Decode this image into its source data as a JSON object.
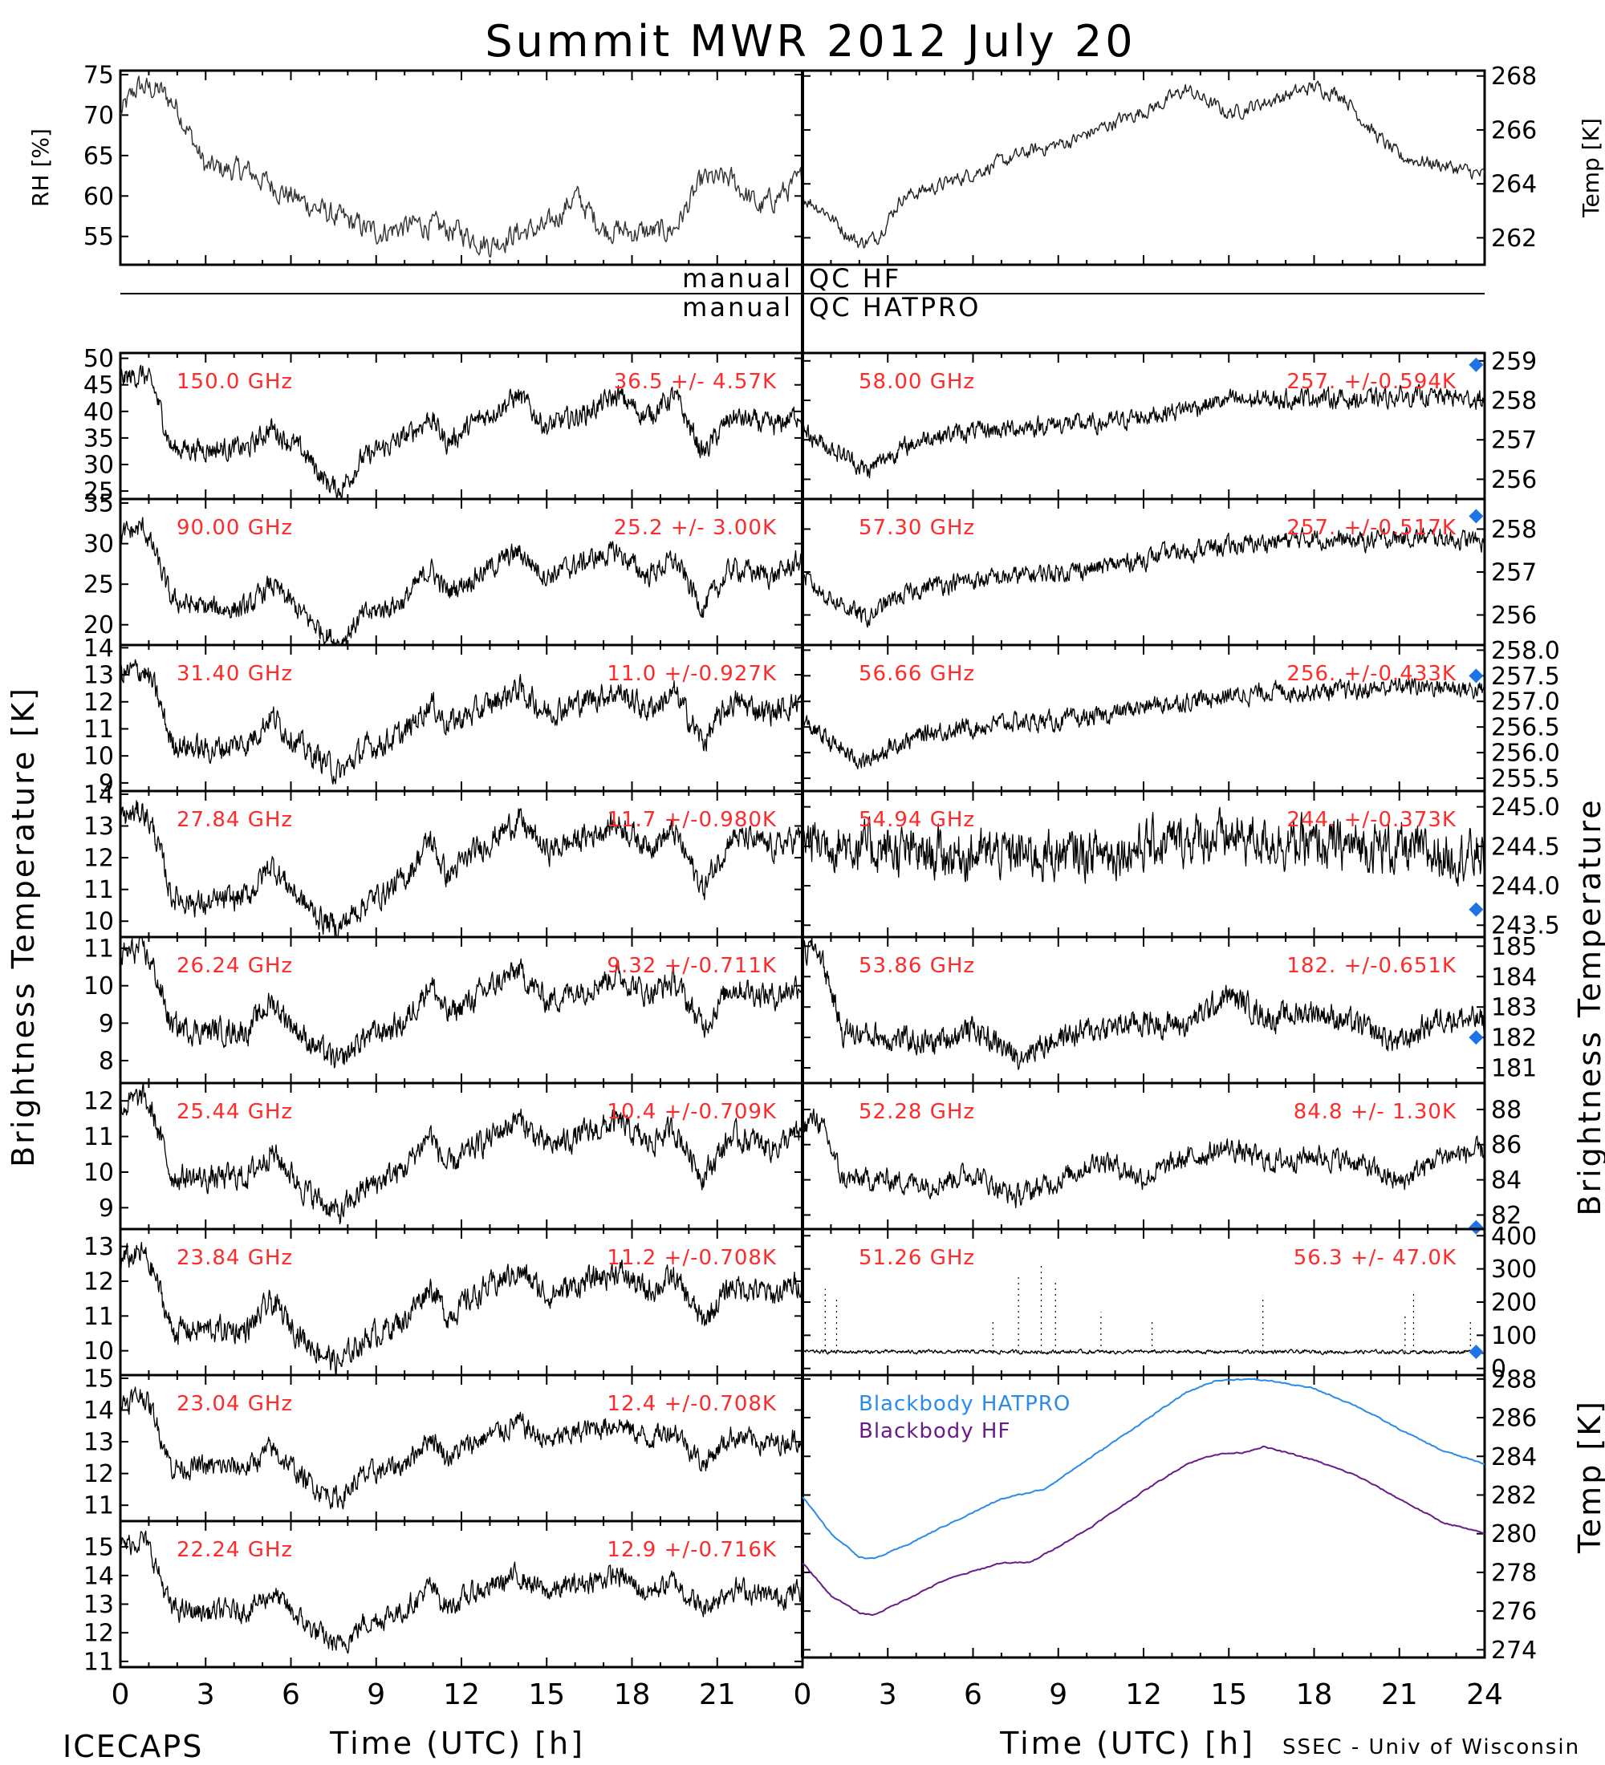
{
  "title": "Summit MWR 2012 July 20",
  "footer": {
    "left": "ICECAPS",
    "right": "SSEC - Univ of Wisconsin"
  },
  "colors": {
    "trace": "#000000",
    "label_red": "#ff2a2a",
    "sounding_blue": "#1e73e6",
    "hatpro_blue": "#2b8be8",
    "hf_purple": "#6a1b8a",
    "axis": "#000000"
  },
  "qc_labels": {
    "hf_left": "manual",
    "hf_right": "QC HF",
    "hatpro_left": "manual",
    "hatpro_right": "QC HATPRO"
  },
  "side_labels": {
    "left_bt": "Brightness Temperature [K]",
    "right_bt": "Brightness Temperature",
    "right_temp": "Temp [K]"
  },
  "x_axis": {
    "label": "Time (UTC) [h]",
    "ticks_left": [
      "0",
      "3",
      "6",
      "9",
      "12",
      "15",
      "18",
      "21"
    ],
    "ticks_right": [
      "0",
      "3",
      "6",
      "9",
      "12",
      "15",
      "18",
      "21",
      "24"
    ],
    "range": [
      0,
      24
    ]
  },
  "chart_data": [
    {
      "type": "line",
      "panel": "rh",
      "ylabel": "RH [%]",
      "ylim": [
        51.5,
        75.5
      ],
      "yticks": [
        55,
        60,
        65,
        70,
        75
      ],
      "x": [
        0,
        0.6,
        1.4,
        2.0,
        3.0,
        4.5,
        6.0,
        7.5,
        9.0,
        10.5,
        12.0,
        13.0,
        14.0,
        15.0,
        16.0,
        17.0,
        18.0,
        19.0,
        19.5,
        20.5,
        21.5,
        22.5,
        24.0
      ],
      "values": [
        70,
        73.5,
        73,
        71,
        63.5,
        63,
        60,
        57.5,
        55.5,
        56.5,
        55.5,
        54,
        55.5,
        56,
        60,
        56,
        55.5,
        55.5,
        56,
        62,
        62,
        58.5,
        62
      ]
    },
    {
      "type": "line",
      "panel": "temp",
      "ylabel": "Temp [K]",
      "ylim": [
        261,
        268.2
      ],
      "yticks": [
        262,
        264,
        266,
        268
      ],
      "x": [
        0,
        0.8,
        1.5,
        2.0,
        2.6,
        3.5,
        5.0,
        6.5,
        8.0,
        9.5,
        11.0,
        12.5,
        13.5,
        15.0,
        16.5,
        18.0,
        19.0,
        20.0,
        21.0,
        22.5,
        24.0
      ],
      "values": [
        263.5,
        263.0,
        262.2,
        261.8,
        262.0,
        263.5,
        264.0,
        264.6,
        265.2,
        265.6,
        266.3,
        266.9,
        267.5,
        266.6,
        267.1,
        267.6,
        267.3,
        266.0,
        265.0,
        264.7,
        264.3
      ]
    },
    {
      "type": "line",
      "panel": "left",
      "label": "150.0 GHz",
      "stat": "36.5 +/- 4.57K",
      "ylim": [
        23.5,
        51
      ],
      "yticks": [
        25,
        30,
        35,
        40,
        45,
        50
      ],
      "x": [
        0,
        0.8,
        1.2,
        1.8,
        3.0,
        4.5,
        5.3,
        6.5,
        7.2,
        7.7,
        8.5,
        10.0,
        10.9,
        11.5,
        12.5,
        14.0,
        15.0,
        16.5,
        17.5,
        18.5,
        19.5,
        20.5,
        21.5,
        23.0,
        24.0
      ],
      "values": [
        46,
        47,
        44,
        33,
        33,
        33,
        37,
        32,
        27,
        25,
        31,
        35,
        39,
        34,
        38,
        43,
        37,
        40,
        43,
        39,
        43,
        32,
        39,
        37,
        40
      ],
      "noise": 0.06,
      "sounding": null
    },
    {
      "type": "line",
      "panel": "left",
      "label": "90.00 GHz",
      "stat": "25.2 +/- 3.00K",
      "ylim": [
        17.5,
        35.5
      ],
      "yticks": [
        20,
        25,
        30,
        35
      ],
      "x": [
        0,
        0.8,
        1.2,
        1.8,
        3.0,
        4.5,
        5.3,
        6.5,
        7.2,
        7.7,
        8.5,
        10.0,
        10.9,
        11.5,
        12.5,
        14.0,
        15.0,
        16.5,
        17.5,
        18.5,
        19.5,
        20.5,
        21.5,
        23.0,
        24.0
      ],
      "values": [
        31,
        32,
        29,
        23,
        22,
        22,
        25,
        21,
        19,
        17.8,
        21,
        23,
        27,
        24,
        26,
        29,
        26,
        28,
        29,
        26,
        28,
        22,
        27,
        26,
        28
      ],
      "noise": 0.06,
      "sounding": null
    },
    {
      "type": "line",
      "panel": "left",
      "label": "31.40 GHz",
      "stat": "11.0 +/-0.927K",
      "ylim": [
        8.7,
        14.1
      ],
      "yticks": [
        9,
        10,
        11,
        12,
        13,
        14
      ],
      "x": [
        0,
        0.8,
        1.2,
        1.8,
        3.0,
        4.5,
        5.3,
        6.5,
        7.2,
        7.7,
        8.5,
        10.0,
        10.9,
        11.5,
        12.5,
        14.0,
        15.0,
        16.5,
        17.5,
        18.5,
        19.5,
        20.5,
        21.5,
        23.0,
        24.0
      ],
      "values": [
        13,
        13.2,
        12.5,
        10.5,
        10.2,
        10.5,
        11.5,
        10.2,
        9.8,
        9.3,
        10.2,
        10.8,
        12,
        11.2,
        11.6,
        12.5,
        11.6,
        12.1,
        12.4,
        11.7,
        12.3,
        10.5,
        12.0,
        11.6,
        12.1
      ],
      "noise": 0.07,
      "sounding": null
    },
    {
      "type": "line",
      "panel": "left",
      "label": "27.84 GHz",
      "stat": "11.7 +/-0.980K",
      "ylim": [
        9.5,
        14.1
      ],
      "yticks": [
        10,
        11,
        12,
        13,
        14
      ],
      "x": [
        0,
        0.8,
        1.2,
        1.8,
        3.0,
        4.5,
        5.3,
        6.5,
        7.2,
        7.7,
        8.5,
        10.0,
        10.9,
        11.5,
        12.5,
        14.0,
        15.0,
        16.5,
        17.5,
        18.5,
        19.5,
        20.5,
        21.5,
        23.0,
        24.0
      ],
      "values": [
        13.2,
        13.5,
        12.8,
        10.8,
        10.5,
        10.8,
        11.8,
        10.5,
        10.0,
        9.8,
        10.5,
        11.3,
        12.6,
        11.4,
        12.2,
        13.2,
        12.2,
        12.7,
        13.1,
        12.4,
        12.8,
        11.0,
        12.7,
        12.3,
        12.7
      ],
      "noise": 0.07,
      "sounding": null
    },
    {
      "type": "line",
      "panel": "left",
      "label": "26.24 GHz",
      "stat": "9.32 +/-0.711K",
      "ylim": [
        7.4,
        11.3
      ],
      "yticks": [
        8,
        9,
        10,
        11
      ],
      "x": [
        0,
        0.8,
        1.2,
        1.8,
        3.0,
        4.5,
        5.3,
        6.5,
        7.2,
        7.7,
        8.5,
        10.0,
        10.9,
        11.5,
        12.5,
        14.0,
        15.0,
        16.5,
        17.5,
        18.5,
        19.5,
        20.5,
        21.5,
        23.0,
        24.0
      ],
      "values": [
        10.8,
        11.0,
        10.4,
        8.9,
        8.8,
        8.8,
        9.6,
        8.6,
        8.2,
        7.9,
        8.6,
        9.0,
        10.1,
        9.2,
        9.7,
        10.4,
        9.6,
        10.0,
        10.3,
        9.8,
        10.1,
        8.9,
        10.0,
        9.7,
        10.1
      ],
      "noise": 0.07,
      "sounding": null
    },
    {
      "type": "line",
      "panel": "left",
      "label": "25.44 GHz",
      "stat": "10.4 +/-0.709K",
      "ylim": [
        8.4,
        12.5
      ],
      "yticks": [
        9,
        10,
        11,
        12
      ],
      "x": [
        0,
        0.8,
        1.2,
        1.8,
        3.0,
        4.5,
        5.3,
        6.5,
        7.2,
        7.7,
        8.5,
        10.0,
        10.9,
        11.5,
        12.5,
        14.0,
        15.0,
        16.5,
        17.5,
        18.5,
        19.5,
        20.5,
        21.5,
        23.0,
        24.0
      ],
      "values": [
        11.8,
        12.1,
        11.5,
        9.9,
        9.8,
        9.9,
        10.6,
        9.5,
        9.1,
        8.8,
        9.5,
        10.1,
        11.1,
        10.1,
        10.7,
        11.5,
        10.7,
        11.1,
        11.4,
        10.8,
        11.2,
        9.9,
        11.0,
        10.7,
        11.1
      ],
      "noise": 0.07,
      "sounding": null
    },
    {
      "type": "line",
      "panel": "left",
      "label": "23.84 GHz",
      "stat": "11.2 +/-0.708K",
      "ylim": [
        9.3,
        13.5
      ],
      "yticks": [
        10,
        11,
        12,
        13
      ],
      "x": [
        0,
        0.8,
        1.2,
        1.8,
        3.0,
        4.5,
        5.3,
        6.5,
        7.2,
        7.7,
        8.5,
        10.0,
        10.9,
        11.5,
        12.5,
        14.0,
        15.0,
        16.5,
        17.5,
        18.5,
        19.5,
        20.5,
        21.5,
        23.0,
        24.0
      ],
      "values": [
        12.6,
        12.8,
        12.2,
        10.6,
        10.6,
        10.6,
        11.4,
        10.3,
        9.9,
        9.6,
        10.3,
        10.9,
        11.9,
        11.0,
        11.6,
        12.3,
        11.6,
        12.0,
        12.3,
        11.7,
        12.1,
        10.8,
        11.9,
        11.6,
        12.0
      ],
      "noise": 0.07,
      "sounding": null
    },
    {
      "type": "line",
      "panel": "left",
      "label": "23.04 GHz",
      "stat": "12.4 +/-0.708K",
      "ylim": [
        10.5,
        15.1
      ],
      "yticks": [
        11,
        12,
        13,
        14,
        15
      ],
      "x": [
        0,
        0.8,
        1.2,
        1.8,
        3.0,
        4.5,
        5.3,
        6.5,
        7.2,
        7.7,
        8.5,
        10.0,
        10.9,
        11.5,
        12.5,
        14.0,
        15.0,
        16.5,
        17.5,
        18.5,
        19.5,
        20.5,
        21.5,
        23.0,
        24.0
      ],
      "values": [
        14.2,
        14.5,
        13.8,
        12.2,
        12.2,
        12.2,
        12.8,
        11.8,
        11.4,
        11.2,
        11.9,
        12.3,
        13.2,
        12.5,
        13.0,
        13.6,
        13.0,
        13.4,
        13.6,
        13.1,
        13.4,
        12.3,
        13.2,
        12.9,
        13.2
      ],
      "noise": 0.06,
      "sounding": null
    },
    {
      "type": "line",
      "panel": "left",
      "label": "22.24 GHz",
      "stat": "12.9 +/-0.716K",
      "ylim": [
        10.8,
        15.9
      ],
      "yticks": [
        11,
        12,
        13,
        14,
        15
      ],
      "x": [
        0,
        0.8,
        1.2,
        1.8,
        3.0,
        4.5,
        5.3,
        6.5,
        7.2,
        7.7,
        8.5,
        10.0,
        10.9,
        11.5,
        12.5,
        14.0,
        15.0,
        16.5,
        17.5,
        18.5,
        19.5,
        20.5,
        21.5,
        23.0,
        24.0
      ],
      "values": [
        15.0,
        15.3,
        14.5,
        12.8,
        12.7,
        12.8,
        13.4,
        12.3,
        11.8,
        11.5,
        12.3,
        12.8,
        13.6,
        12.9,
        13.4,
        14.0,
        13.4,
        13.8,
        14.0,
        13.4,
        13.8,
        12.8,
        13.6,
        13.2,
        13.5
      ],
      "noise": 0.06,
      "sounding": null
    },
    {
      "type": "line",
      "panel": "right",
      "label": "58.00 GHz",
      "stat": "257. +/-0.594K",
      "ylim": [
        255.5,
        259.2
      ],
      "yticks": [
        256,
        257,
        258,
        259
      ],
      "x": [
        0,
        0.5,
        1.5,
        2.3,
        3.0,
        4.5,
        6.0,
        7.5,
        9.0,
        10.5,
        12.0,
        13.5,
        15.0,
        16.5,
        18.0,
        19.5,
        21.0,
        22.5,
        24.0
      ],
      "values": [
        257.3,
        257.0,
        256.6,
        256.2,
        256.6,
        257.1,
        257.2,
        257.3,
        257.4,
        257.4,
        257.6,
        257.8,
        258.0,
        258.0,
        258.1,
        258.0,
        258.1,
        258.1,
        258.0
      ],
      "noise": 0.05,
      "sounding": 258.9
    },
    {
      "type": "line",
      "panel": "right",
      "label": "57.30 GHz",
      "stat": "257. +/-0.517K",
      "ylim": [
        255.3,
        258.7
      ],
      "yticks": [
        256,
        257,
        258
      ],
      "x": [
        0,
        0.5,
        1.5,
        2.3,
        3.0,
        4.5,
        6.0,
        7.5,
        9.0,
        10.5,
        12.0,
        13.5,
        15.0,
        16.5,
        18.0,
        19.5,
        21.0,
        22.5,
        24.0
      ],
      "values": [
        256.9,
        256.6,
        256.2,
        255.9,
        256.3,
        256.7,
        256.8,
        256.9,
        257.0,
        257.1,
        257.3,
        257.5,
        257.6,
        257.7,
        257.8,
        257.7,
        257.8,
        257.8,
        257.7
      ],
      "noise": 0.05,
      "sounding": 258.3
    },
    {
      "type": "line",
      "panel": "right",
      "label": "56.66 GHz",
      "stat": "256. +/-0.433K",
      "ylim": [
        255.25,
        258.1
      ],
      "yticks": [
        255.5,
        256.0,
        256.5,
        257.0,
        257.5,
        258.0
      ],
      "x": [
        0,
        0.5,
        1.5,
        2.3,
        3.0,
        4.5,
        6.0,
        7.5,
        9.0,
        10.5,
        12.0,
        13.5,
        15.0,
        16.5,
        18.0,
        19.5,
        21.0,
        22.5,
        24.0
      ],
      "values": [
        256.6,
        256.4,
        256.0,
        255.8,
        256.1,
        256.4,
        256.5,
        256.6,
        256.6,
        256.7,
        256.9,
        257.0,
        257.1,
        257.2,
        257.2,
        257.2,
        257.3,
        257.3,
        257.2
      ],
      "noise": 0.05,
      "sounding": 257.5
    },
    {
      "type": "line",
      "panel": "right",
      "label": "54.94 GHz",
      "stat": "244. +/-0.373K",
      "ylim": [
        243.35,
        245.2
      ],
      "yticks": [
        243.5,
        244.0,
        244.5,
        245.0
      ],
      "x": [
        0,
        2.0,
        4.0,
        6.0,
        8.0,
        10.0,
        12.0,
        14.0,
        16.0,
        18.0,
        20.0,
        22.0,
        24.0
      ],
      "values": [
        244.6,
        244.5,
        244.4,
        244.4,
        244.4,
        244.4,
        244.5,
        244.6,
        244.6,
        244.5,
        244.5,
        244.4,
        244.4
      ],
      "noise": 0.13,
      "sounding": 243.7
    },
    {
      "type": "line",
      "panel": "right",
      "label": "53.86 GHz",
      "stat": "182. +/-0.651K",
      "ylim": [
        180.5,
        185.3
      ],
      "yticks": [
        181,
        182,
        183,
        184,
        185
      ],
      "x": [
        0,
        0.5,
        1.0,
        1.4,
        3.0,
        4.5,
        6.0,
        7.5,
        9.0,
        10.5,
        12.0,
        13.5,
        15.0,
        16.5,
        18.0,
        19.5,
        21.0,
        22.5,
        24.0
      ],
      "values": [
        184.7,
        185.0,
        183.6,
        182.2,
        182.0,
        181.8,
        182.3,
        181.4,
        182.0,
        182.3,
        182.5,
        182.4,
        183.4,
        182.6,
        182.9,
        182.4,
        181.8,
        182.7,
        182.5
      ],
      "noise": 0.07,
      "sounding": 182.0
    },
    {
      "type": "line",
      "panel": "right",
      "label": "52.28 GHz",
      "stat": "84.8 +/- 1.30K",
      "ylim": [
        81.2,
        89.5
      ],
      "yticks": [
        82,
        84,
        86,
        88
      ],
      "x": [
        0,
        0.5,
        1.0,
        1.4,
        3.0,
        4.5,
        6.0,
        7.5,
        9.0,
        10.5,
        12.0,
        13.5,
        15.0,
        16.5,
        18.0,
        19.5,
        21.0,
        22.5,
        24.0
      ],
      "values": [
        87,
        87.6,
        85.8,
        84.0,
        84.0,
        83.8,
        84.4,
        83.0,
        84.0,
        85.2,
        84.1,
        85.2,
        85.8,
        85.0,
        85.4,
        85.0,
        83.8,
        85.4,
        85.6
      ],
      "noise": 0.06,
      "sounding": 81.3
    },
    {
      "type": "line",
      "panel": "right",
      "label": "51.26 GHz",
      "stat": "56.3 +/- 47.0K",
      "ylim": [
        -20,
        420
      ],
      "yticks": [
        0,
        100,
        200,
        300,
        400
      ],
      "x": [
        0,
        24
      ],
      "values": [
        50,
        50
      ],
      "noise": 0.01,
      "sounding": 50,
      "spikes": [
        [
          0.8,
          240
        ],
        [
          1.2,
          210
        ],
        [
          6.7,
          150
        ],
        [
          7.6,
          280
        ],
        [
          8.4,
          310
        ],
        [
          8.9,
          260
        ],
        [
          10.5,
          170
        ],
        [
          12.3,
          150
        ],
        [
          16.2,
          220
        ],
        [
          21.2,
          160
        ],
        [
          21.5,
          230
        ],
        [
          23.5,
          150
        ]
      ]
    },
    {
      "type": "line",
      "panel": "blackbody",
      "ylabel": "Temp [K]",
      "ylim": [
        273.6,
        288.2
      ],
      "yticks": [
        274,
        276,
        278,
        280,
        282,
        284,
        286,
        288
      ],
      "series": [
        {
          "name": "Blackbody HATPRO",
          "x": [
            0,
            1.0,
            2.0,
            2.5,
            3.5,
            5.0,
            7.0,
            8.5,
            10.0,
            12.0,
            13.5,
            14.5,
            15.5,
            16.5,
            18.0,
            19.5,
            21.0,
            22.5,
            24.0
          ],
          "values": [
            281.9,
            280.0,
            278.8,
            278.7,
            279.3,
            280.4,
            281.8,
            282.3,
            283.8,
            285.8,
            287.3,
            287.9,
            288.0,
            287.9,
            287.5,
            286.6,
            285.4,
            284.3,
            283.6
          ]
        },
        {
          "name": "Blackbody HF",
          "x": [
            0,
            1.0,
            2.0,
            2.5,
            3.5,
            5.0,
            7.0,
            8.0,
            10.0,
            12.0,
            13.5,
            14.5,
            15.5,
            16.2,
            17.0,
            18.0,
            19.5,
            21.0,
            22.5,
            24.0
          ],
          "values": [
            278.5,
            276.8,
            275.9,
            275.8,
            276.5,
            277.6,
            278.5,
            278.5,
            280.2,
            282.2,
            283.6,
            284.1,
            284.2,
            284.5,
            284.2,
            283.8,
            283.0,
            281.8,
            280.6,
            280.0
          ]
        }
      ]
    }
  ]
}
